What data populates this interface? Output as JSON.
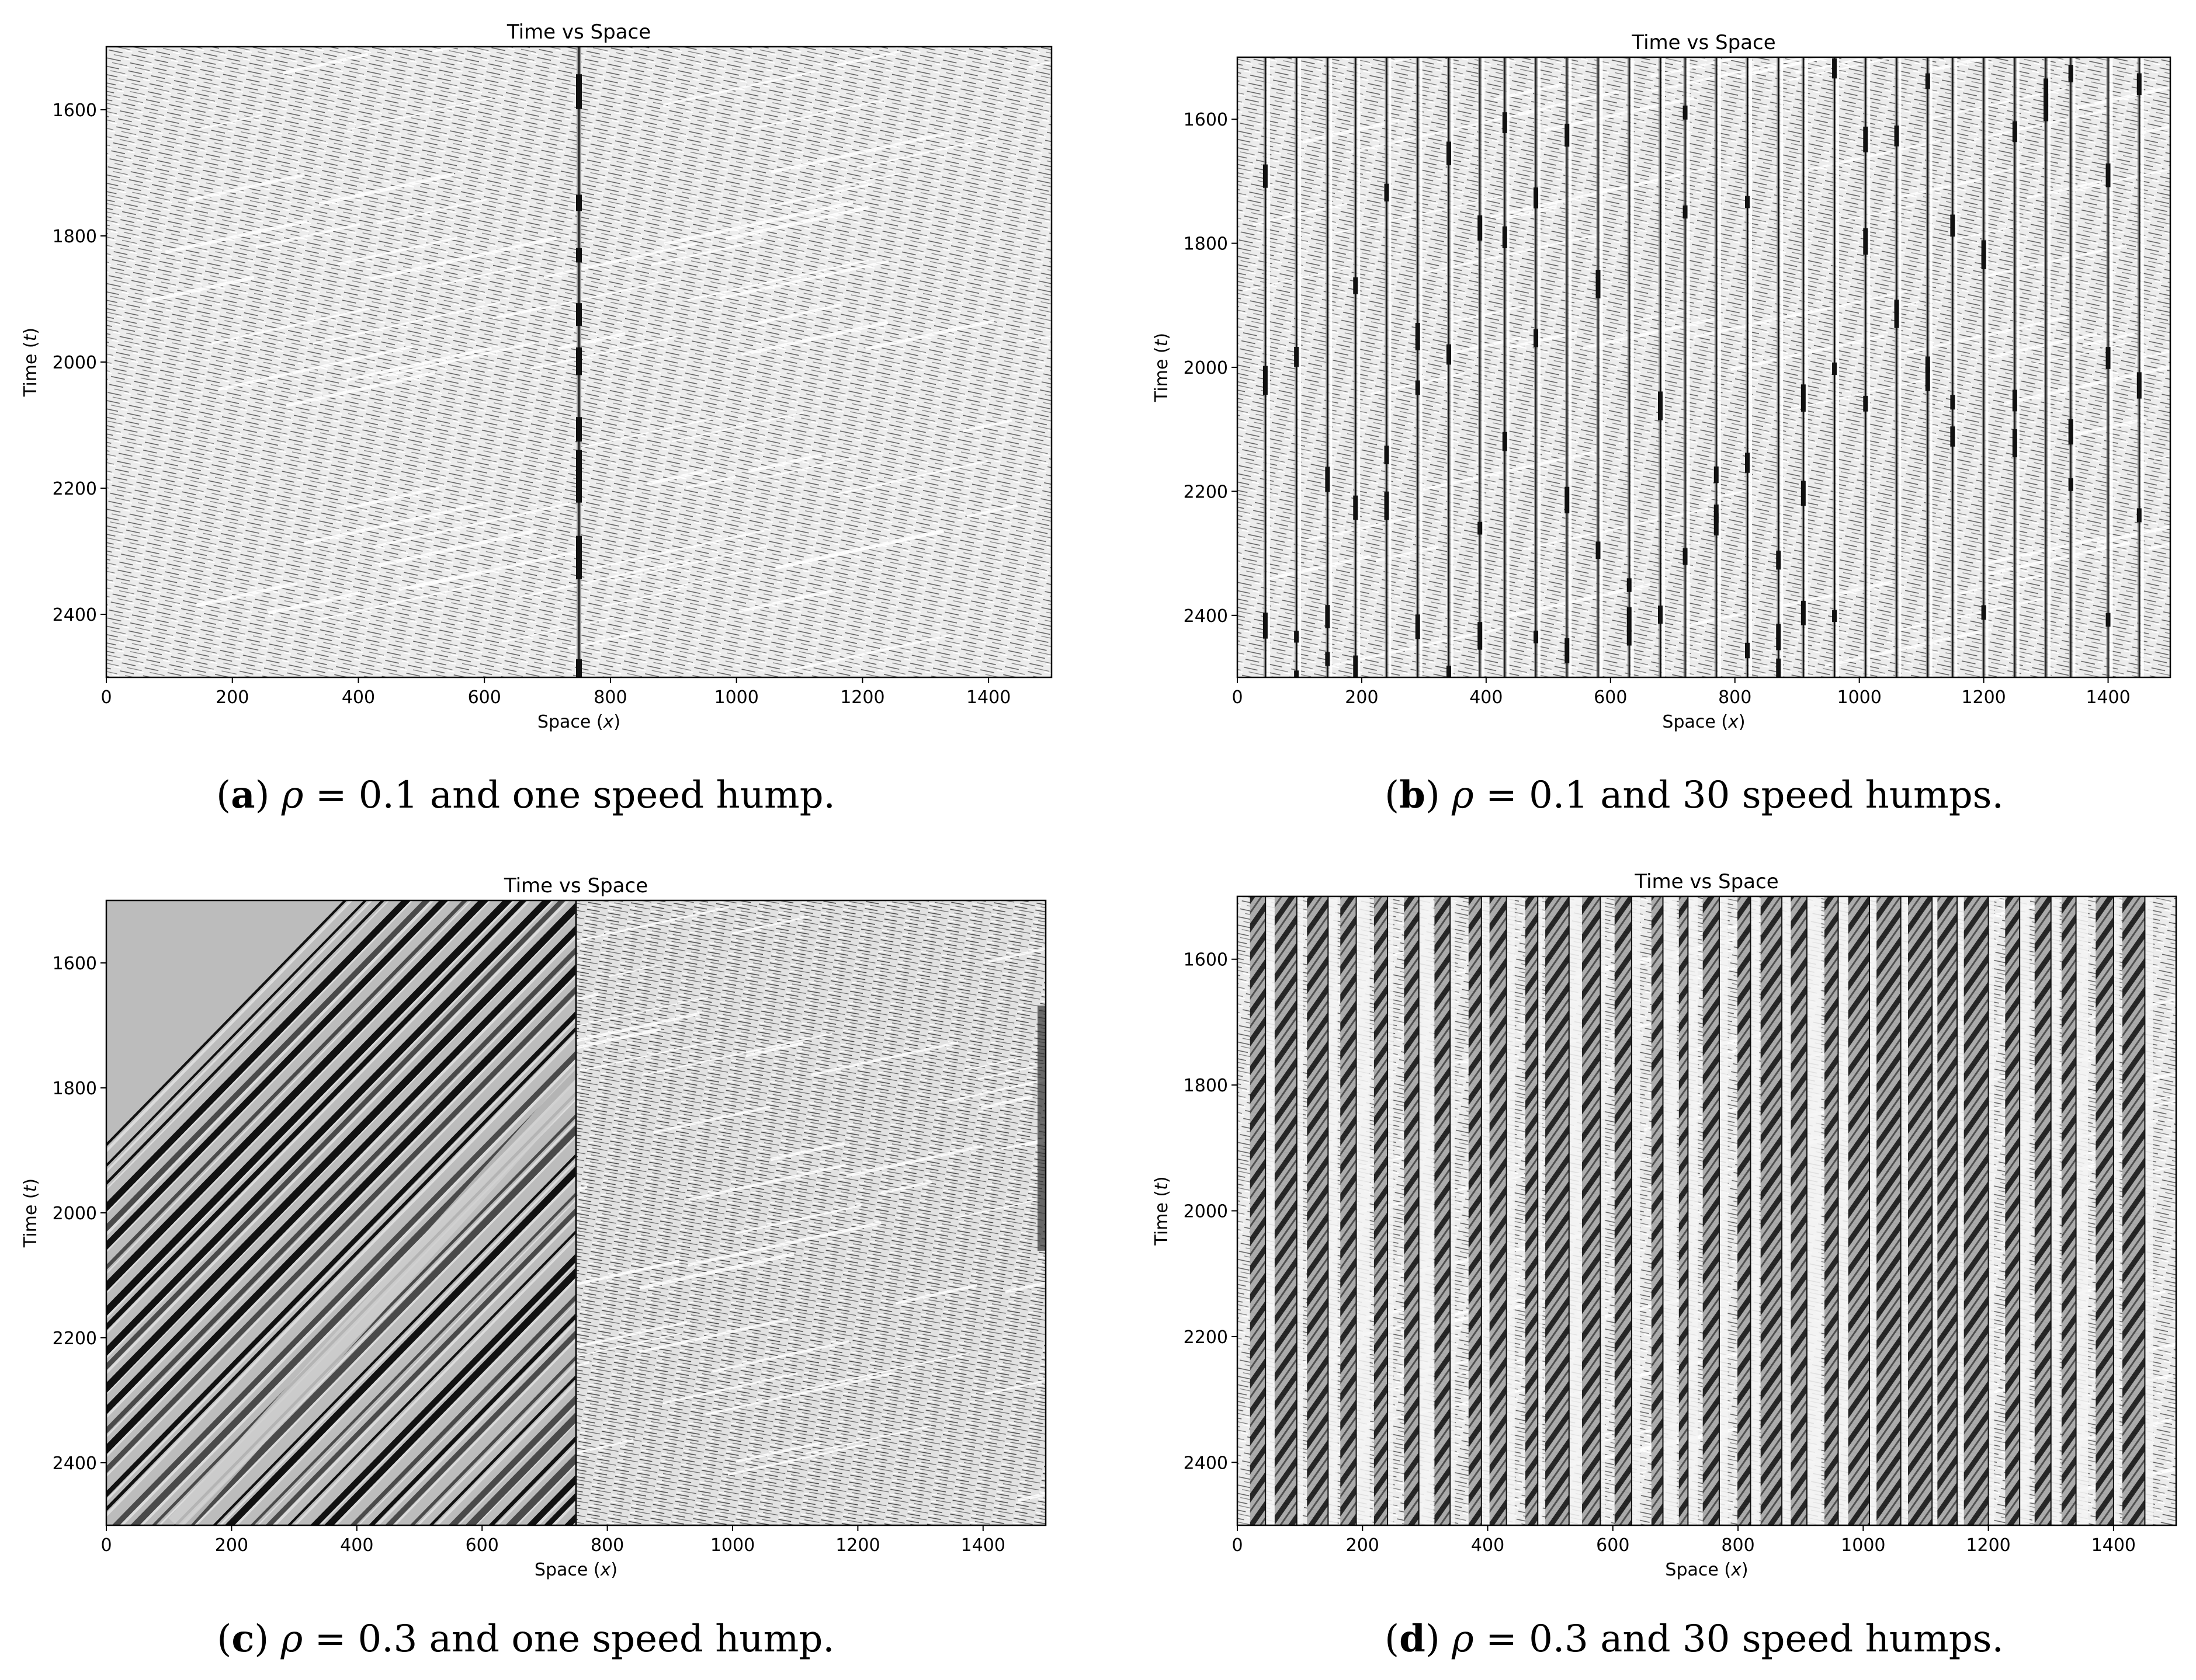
{
  "colors": {
    "ink": "#000000",
    "background": "#ffffff"
  },
  "chart_data": [
    {
      "id": "a",
      "type": "heatmap",
      "title": "Time vs Space",
      "xlabel_main": "Space (",
      "xlabel_var": "x",
      "xlabel_end": ")",
      "ylabel_main": "Time (",
      "ylabel_var": "t",
      "ylabel_end": ")",
      "xlim": [
        0,
        1500
      ],
      "ylim": [
        1500,
        2500
      ],
      "y_inverted": true,
      "xticks": [
        "0",
        "200",
        "400",
        "600",
        "800",
        "1000",
        "1200",
        "1400"
      ],
      "yticks": [
        "1600",
        "1800",
        "2000",
        "2200",
        "2400"
      ],
      "x_tick_values": [
        0,
        200,
        400,
        600,
        800,
        1000,
        1200,
        1400
      ],
      "y_tick_values": [
        1600,
        1800,
        2000,
        2200,
        2400
      ],
      "density": 0.1,
      "hump_positions": [
        750
      ],
      "caption": {
        "letter_open": "(",
        "letter": "a",
        "letter_close": ")",
        "var": "ρ",
        "eq": " = 0.1 and one speed hump."
      }
    },
    {
      "id": "b",
      "type": "heatmap",
      "title": "Time vs Space",
      "xlabel_main": "Space (",
      "xlabel_var": "x",
      "xlabel_end": ")",
      "ylabel_main": "Time (",
      "ylabel_var": "t",
      "ylabel_end": ")",
      "xlim": [
        0,
        1500
      ],
      "ylim": [
        1500,
        2500
      ],
      "y_inverted": true,
      "xticks": [
        "0",
        "200",
        "400",
        "600",
        "800",
        "1000",
        "1200",
        "1400"
      ],
      "yticks": [
        "1600",
        "1800",
        "2000",
        "2200",
        "2400"
      ],
      "x_tick_values": [
        0,
        200,
        400,
        600,
        800,
        1000,
        1200,
        1400
      ],
      "y_tick_values": [
        1600,
        1800,
        2000,
        2200,
        2400
      ],
      "density": 0.1,
      "hump_positions": [
        45,
        95,
        145,
        190,
        240,
        290,
        340,
        390,
        430,
        480,
        530,
        580,
        630,
        680,
        720,
        770,
        820,
        870,
        910,
        960,
        1010,
        1060,
        1110,
        1150,
        1200,
        1250,
        1300,
        1340,
        1400,
        1450
      ],
      "caption": {
        "letter_open": "(",
        "letter": "b",
        "letter_close": ")",
        "var": "ρ",
        "eq": " = 0.1 and 30 speed humps."
      }
    },
    {
      "id": "c",
      "type": "heatmap",
      "title": "Time vs Space",
      "xlabel_main": "Space (",
      "xlabel_var": "x",
      "xlabel_end": ")",
      "ylabel_main": "Time (",
      "ylabel_var": "t",
      "ylabel_end": ")",
      "xlim": [
        0,
        1500
      ],
      "ylim": [
        1500,
        2500
      ],
      "y_inverted": true,
      "xticks": [
        "0",
        "200",
        "400",
        "600",
        "800",
        "1000",
        "1200",
        "1400"
      ],
      "yticks": [
        "1600",
        "1800",
        "2000",
        "2200",
        "2400"
      ],
      "x_tick_values": [
        0,
        200,
        400,
        600,
        800,
        1000,
        1200,
        1400
      ],
      "y_tick_values": [
        1600,
        1800,
        2000,
        2200,
        2400
      ],
      "density": 0.3,
      "hump_positions": [
        750
      ],
      "caption": {
        "letter_open": "(",
        "letter": "c",
        "letter_close": ")",
        "var": "ρ",
        "eq": " = 0.3 and one speed hump."
      }
    },
    {
      "id": "d",
      "type": "heatmap",
      "title": "Time vs Space",
      "xlabel_main": "Space (",
      "xlabel_var": "x",
      "xlabel_end": ")",
      "ylabel_main": "Time (",
      "ylabel_var": "t",
      "ylabel_end": ")",
      "xlim": [
        0,
        1500
      ],
      "ylim": [
        1500,
        2500
      ],
      "y_inverted": true,
      "xticks": [
        "0",
        "200",
        "400",
        "600",
        "800",
        "1000",
        "1200",
        "1400"
      ],
      "yticks": [
        "1600",
        "1800",
        "2000",
        "2200",
        "2400"
      ],
      "x_tick_values": [
        0,
        200,
        400,
        600,
        800,
        1000,
        1200,
        1400
      ],
      "y_tick_values": [
        1600,
        1800,
        2000,
        2200,
        2400
      ],
      "density": 0.3,
      "hump_positions": [
        45,
        95,
        145,
        190,
        240,
        290,
        340,
        390,
        430,
        480,
        530,
        580,
        630,
        680,
        720,
        770,
        820,
        870,
        910,
        960,
        1010,
        1060,
        1110,
        1150,
        1200,
        1250,
        1300,
        1340,
        1400,
        1450
      ],
      "caption": {
        "letter_open": "(",
        "letter": "d",
        "letter_close": ")",
        "var": "ρ",
        "eq": " = 0.3 and 30 speed humps."
      }
    }
  ]
}
